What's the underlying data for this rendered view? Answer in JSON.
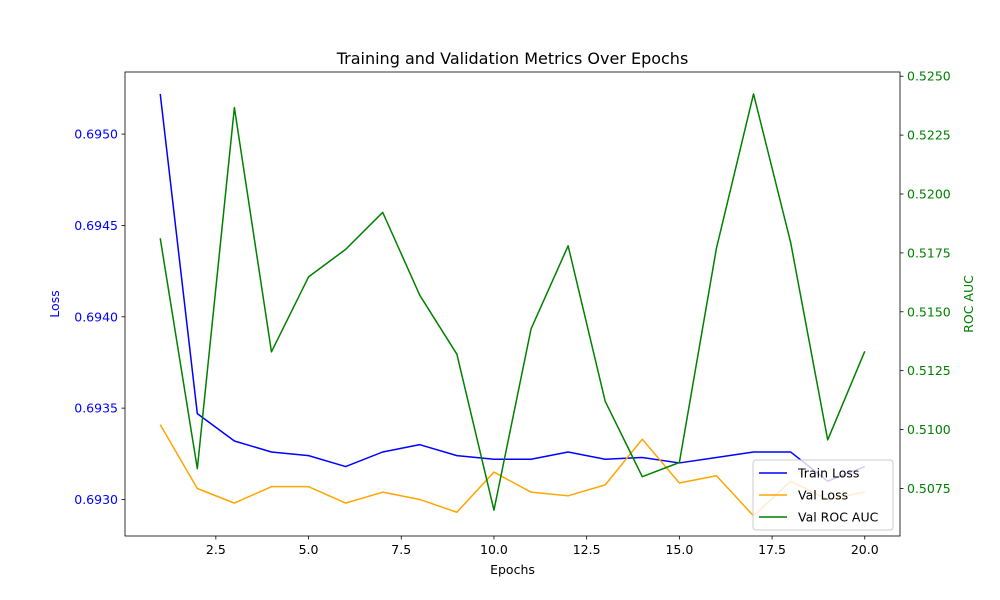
{
  "chart_data": {
    "type": "line",
    "title": "Training and Validation Metrics Over Epochs",
    "xlabel": "Epochs",
    "ylabel_left": "Loss",
    "ylabel_right": "ROC AUC",
    "x": [
      1,
      2,
      3,
      4,
      5,
      6,
      7,
      8,
      9,
      10,
      11,
      12,
      13,
      14,
      15,
      16,
      17,
      18,
      19,
      20
    ],
    "xlim": [
      0.05,
      20.95
    ],
    "ylim_left": [
      0.6928,
      0.69534
    ],
    "ylim_right": [
      0.50548,
      0.52518
    ],
    "xticks": [
      2.5,
      5.0,
      7.5,
      10.0,
      12.5,
      15.0,
      17.5,
      20.0
    ],
    "xtick_labels": [
      "2.5",
      "5.0",
      "7.5",
      "10.0",
      "12.5",
      "15.0",
      "17.5",
      "20.0"
    ],
    "yticks_left": [
      0.693,
      0.6935,
      0.694,
      0.6945,
      0.695
    ],
    "ytick_labels_left": [
      "0.6930",
      "0.6935",
      "0.6940",
      "0.6945",
      "0.6950"
    ],
    "yticks_right": [
      0.5075,
      0.51,
      0.5125,
      0.515,
      0.5175,
      0.52,
      0.5225,
      0.525
    ],
    "ytick_labels_right": [
      "0.5075",
      "0.5100",
      "0.5125",
      "0.5150",
      "0.5175",
      "0.5200",
      "0.5225",
      "0.5250"
    ],
    "left_axis_color": "#0000ff",
    "right_axis_color": "#008000",
    "legend_position": "lower right",
    "grid": false,
    "series": [
      {
        "name": "Train Loss",
        "axis": "left",
        "color": "#0000ff",
        "values": [
          0.69522,
          0.69347,
          0.69332,
          0.69326,
          0.69324,
          0.69318,
          0.69326,
          0.6933,
          0.69324,
          0.69322,
          0.69322,
          0.69326,
          0.69322,
          0.69323,
          0.6932,
          0.69323,
          0.69326,
          0.69326,
          0.6931,
          0.69318
        ]
      },
      {
        "name": "Val Loss",
        "axis": "left",
        "color": "#ffa500",
        "values": [
          0.69341,
          0.69306,
          0.69298,
          0.69307,
          0.69307,
          0.69298,
          0.69304,
          0.693,
          0.69293,
          0.69315,
          0.69304,
          0.69302,
          0.69308,
          0.69333,
          0.69309,
          0.69313,
          0.69291,
          0.6931,
          0.693,
          0.69304
        ]
      },
      {
        "name": "Val ROC AUC",
        "axis": "right",
        "color": "#008000",
        "values": [
          0.51812,
          0.50834,
          0.52367,
          0.5133,
          0.51648,
          0.51765,
          0.51922,
          0.5157,
          0.5132,
          0.50658,
          0.51427,
          0.5178,
          0.5112,
          0.508,
          0.5086,
          0.5177,
          0.52425,
          0.51795,
          0.50956,
          0.51332
        ]
      }
    ]
  }
}
